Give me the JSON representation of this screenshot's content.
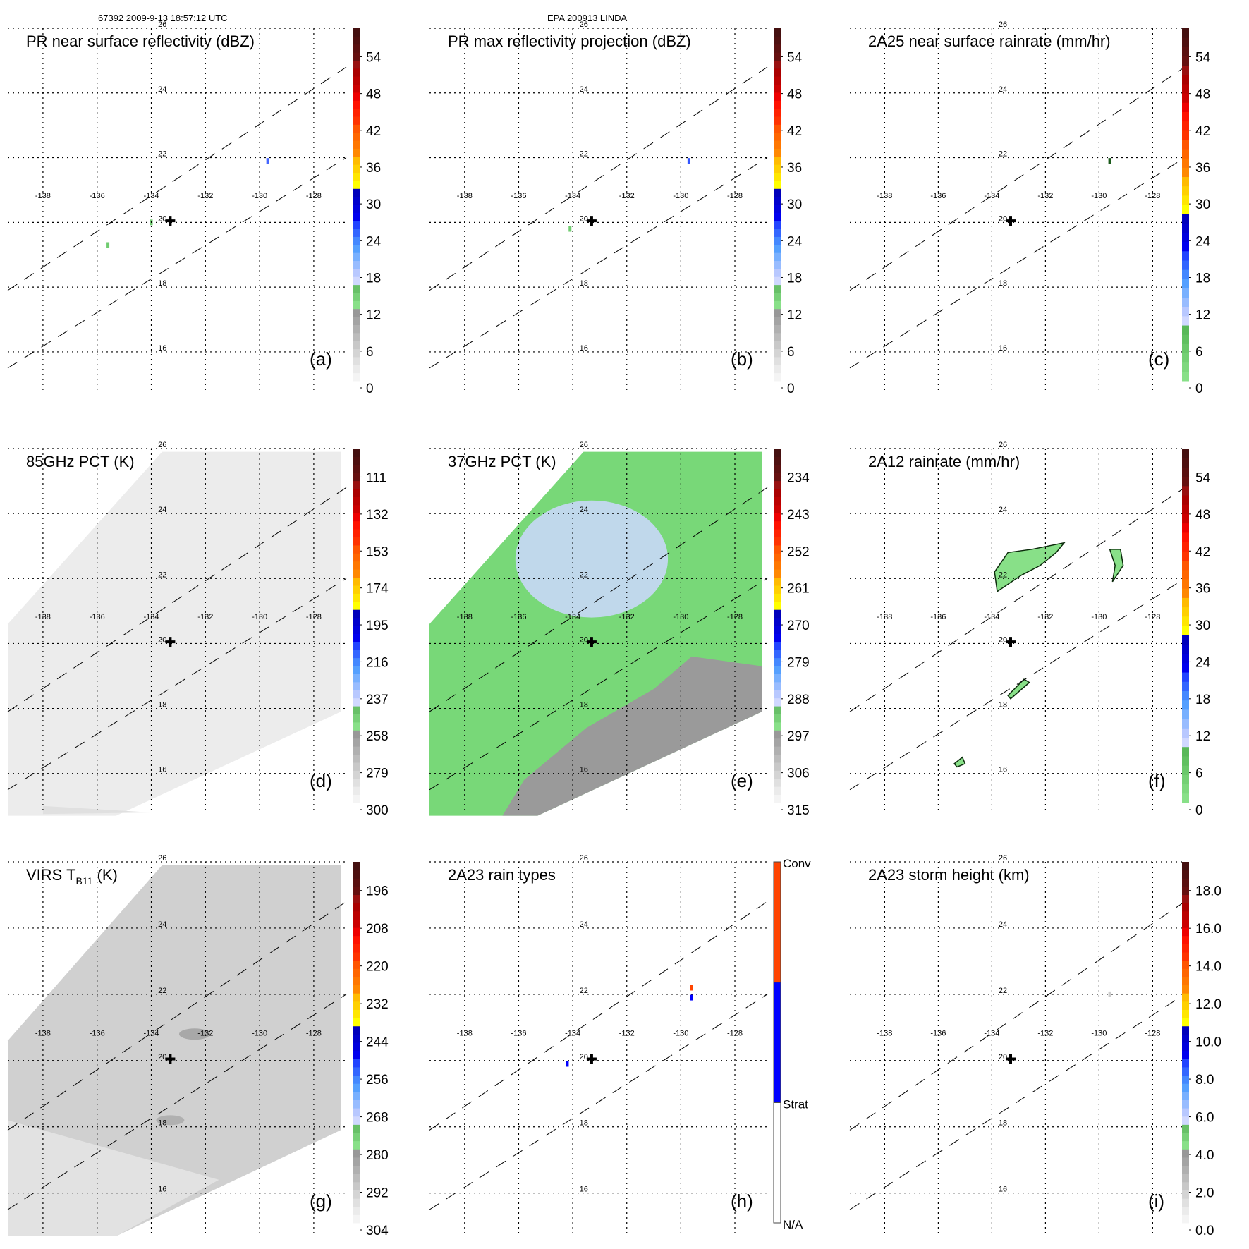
{
  "header": {
    "orbit_time": "67392 2009-9-13 18:57:12 UTC",
    "storm": "EPA 200913 LINDA"
  },
  "chart_data": [
    {
      "panel": "(a)",
      "type": "heatmap",
      "title": "PR near surface reflectivity (dBZ)",
      "colorbar": {
        "ticks": [
          "0",
          "6",
          "12",
          "18",
          "24",
          "30",
          "36",
          "42",
          "48",
          "54"
        ],
        "range": [
          0,
          60
        ],
        "bands": [
          "#f4f4f4",
          "#e6e6e6",
          "#d6d6d6",
          "#c4c4c4",
          "#b0b0b0",
          "#9c9c9c",
          "#88e088",
          "#70cc70",
          "#c8d0ff",
          "#a0c0ff",
          "#78b0ff",
          "#4488ff",
          "#2244ff",
          "#0000dd",
          "#ffff00",
          "#ffcc00",
          "#ff8800",
          "#ff6600",
          "#ff3300",
          "#ff1a00",
          "#cc0000",
          "#aa0000",
          "#661010",
          "#551010"
        ]
      },
      "background": "none",
      "echoes": [
        {
          "lon": -129.7,
          "lat": 21.9,
          "color": "#4466ff"
        },
        {
          "lon": -134.0,
          "lat": 20.0,
          "color": "#70cc70"
        },
        {
          "lon": -135.6,
          "lat": 19.3,
          "color": "#70cc70"
        }
      ]
    },
    {
      "panel": "(b)",
      "type": "heatmap",
      "title": "PR max reflectivity projection (dBZ)",
      "colorbar": {
        "ticks": [
          "0",
          "6",
          "12",
          "18",
          "24",
          "30",
          "36",
          "42",
          "48",
          "54"
        ],
        "range": [
          0,
          60
        ],
        "same_as": "(a)"
      },
      "background": "none",
      "echoes": [
        {
          "lon": -129.7,
          "lat": 21.9,
          "color": "#3355ff"
        },
        {
          "lon": -134.1,
          "lat": 19.8,
          "color": "#70cc70"
        }
      ]
    },
    {
      "panel": "(c)",
      "type": "heatmap",
      "title": "2A25 near surface rainrate (mm/hr)",
      "colorbar": {
        "ticks": [
          "0",
          "6",
          "12",
          "18",
          "24",
          "30",
          "36",
          "42",
          "48",
          "54"
        ],
        "range": [
          0,
          60
        ],
        "style": "rain"
      },
      "background": "none",
      "echoes": [
        {
          "lon": -129.6,
          "lat": 21.9,
          "color": "#1a5a1a"
        }
      ]
    },
    {
      "panel": "(d)",
      "type": "heatmap",
      "title": "85GHz PCT (K)",
      "colorbar": {
        "ticks": [
          "300",
          "279",
          "258",
          "237",
          "216",
          "195",
          "174",
          "153",
          "132",
          "111"
        ],
        "range": [
          300,
          90
        ]
      },
      "background": "swath-lightgray"
    },
    {
      "panel": "(e)",
      "type": "heatmap",
      "title": "37GHz PCT (K)",
      "colorbar": {
        "ticks": [
          "315",
          "306",
          "297",
          "288",
          "279",
          "270",
          "261",
          "252",
          "243",
          "234"
        ],
        "range": [
          315,
          225
        ]
      },
      "background": "swath-green"
    },
    {
      "panel": "(f)",
      "type": "heatmap",
      "title": "2A12 rainrate (mm/hr)",
      "colorbar": {
        "ticks": [
          "0",
          "6",
          "12",
          "18",
          "24",
          "30",
          "36",
          "42",
          "48",
          "54"
        ],
        "range": [
          0,
          60
        ],
        "style": "rain"
      },
      "background": "none",
      "rain_areas": [
        {
          "lon": [
            -133.9,
            -133.4,
            -132.5,
            -131.3,
            -131.6,
            -132.2,
            -132.9,
            -133.8
          ],
          "lat": [
            22.2,
            22.8,
            22.9,
            23.1,
            22.8,
            22.4,
            22.1,
            21.6
          ]
        },
        {
          "lon": [
            -129.6,
            -129.2,
            -129.1,
            -129.5,
            -129.4
          ],
          "lat": [
            22.9,
            22.9,
            22.4,
            21.9,
            22.4
          ]
        },
        {
          "lon": [
            -133.4,
            -132.8,
            -132.6,
            -133.3
          ],
          "lat": [
            18.4,
            18.9,
            18.8,
            18.3
          ]
        },
        {
          "lon": [
            -135.4,
            -135.1,
            -135.0,
            -135.3
          ],
          "lat": [
            16.3,
            16.5,
            16.3,
            16.2
          ]
        }
      ]
    },
    {
      "panel": "(g)",
      "type": "heatmap",
      "title": "VIRS T",
      "title_sub": "B11",
      "title_suffix": " (K)",
      "colorbar": {
        "ticks": [
          "304",
          "292",
          "280",
          "268",
          "256",
          "244",
          "232",
          "220",
          "208",
          "196"
        ],
        "range": [
          304,
          184
        ]
      },
      "background": "swath-midgray"
    },
    {
      "panel": "(h)",
      "type": "heatmap",
      "title": "2A23 rain types",
      "colorbar": {
        "categories": [
          "N/A",
          "Strat",
          "Conv"
        ],
        "colors": [
          "#ffffff",
          "#0000ff",
          "#ff4400"
        ]
      },
      "background": "none",
      "echoes": [
        {
          "lon": -129.6,
          "lat": 22.2,
          "color": "#ff4400"
        },
        {
          "lon": -129.6,
          "lat": 21.9,
          "color": "#0000ff"
        },
        {
          "lon": -134.2,
          "lat": 19.9,
          "color": "#0000ff"
        }
      ]
    },
    {
      "panel": "(i)",
      "type": "heatmap",
      "title": "2A23 storm height (km)",
      "colorbar": {
        "ticks": [
          "0.0",
          "2.0",
          "4.0",
          "6.0",
          "8.0",
          "10.0",
          "12.0",
          "14.0",
          "16.0",
          "18.0"
        ],
        "range": [
          0,
          20
        ]
      },
      "background": "none",
      "echoes": [
        {
          "lon": -129.6,
          "lat": 22.0,
          "color": "#cccccc"
        }
      ]
    }
  ],
  "map": {
    "lon_ticks": [
      "-138",
      "-136",
      "-134",
      "-132",
      "-130",
      "-128"
    ],
    "lat_ticks": [
      "16",
      "18",
      "20",
      "22",
      "24",
      "26"
    ],
    "lon_range": [
      -139.3,
      -126.8
    ],
    "lat_range": [
      14.8,
      26.0
    ],
    "storm_center": {
      "lon": -133.3,
      "lat": 20.05,
      "symbol": "+"
    },
    "pr_swath_edges": "dashed"
  }
}
